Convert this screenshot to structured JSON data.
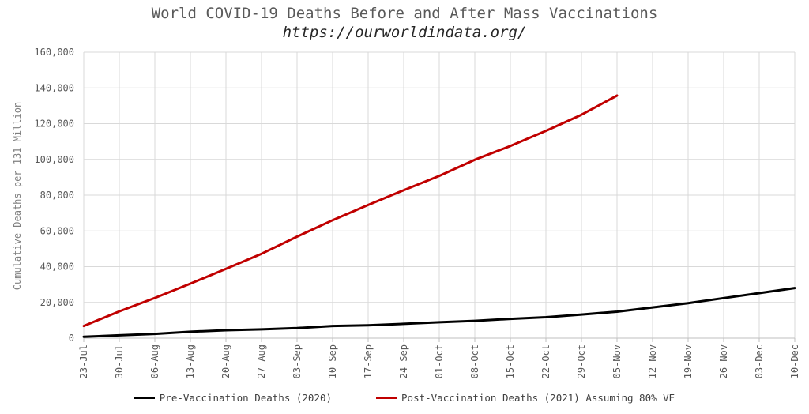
{
  "chart_data": {
    "type": "line",
    "title": "World COVID-19 Deaths Before and After Mass Vaccinations",
    "subtitle": "https://ourworldindata.org/",
    "xlabel": "",
    "ylabel": "Cumulative Deaths per 131 Million",
    "ylim": [
      0,
      160000
    ],
    "yticks": [
      "0",
      "20,000",
      "40,000",
      "60,000",
      "80,000",
      "100,000",
      "120,000",
      "140,000",
      "160,000"
    ],
    "ytick_values": [
      0,
      20000,
      40000,
      60000,
      80000,
      100000,
      120000,
      140000,
      160000
    ],
    "categories": [
      "23-Jul",
      "30-Jul",
      "06-Aug",
      "13-Aug",
      "20-Aug",
      "27-Aug",
      "03-Sep",
      "10-Sep",
      "17-Sep",
      "24-Sep",
      "01-Oct",
      "08-Oct",
      "15-Oct",
      "22-Oct",
      "29-Oct",
      "05-Nov",
      "12-Nov",
      "19-Nov",
      "26-Nov",
      "03-Dec",
      "10-Dec"
    ],
    "grid": true,
    "legend_position": "bottom",
    "series": [
      {
        "name": "Pre-Vaccination Deaths (2020)",
        "color": "#000000",
        "values": [
          800,
          1600,
          2400,
          3600,
          4400,
          4900,
          5600,
          6800,
          7200,
          8000,
          8900,
          9700,
          10800,
          11700,
          13200,
          14800,
          17200,
          19600,
          22400,
          25200,
          28000
        ]
      },
      {
        "name": "Post-Vaccination Deaths (2021) Assuming 80% VE",
        "color": "#c00000",
        "values": [
          6800,
          15000,
          22500,
          30500,
          38800,
          47200,
          56800,
          66000,
          74500,
          82800,
          90800,
          99800,
          107500,
          116000,
          125000,
          135700,
          null,
          null,
          null,
          null,
          null
        ]
      }
    ]
  }
}
